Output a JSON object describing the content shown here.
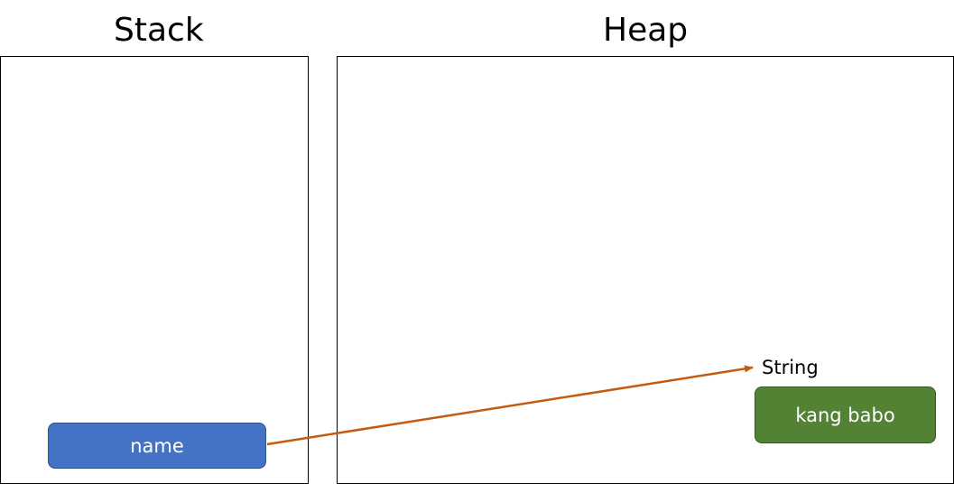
{
  "stack": {
    "title": "Stack"
  },
  "heap": {
    "title": "Heap"
  },
  "variable": {
    "label": "name",
    "fill": "#4472c4"
  },
  "object": {
    "type_label": "String",
    "value": "kang babo",
    "fill": "#548235"
  },
  "reference_arrow": {
    "color": "#c55a11",
    "from": "name",
    "to": "String"
  }
}
